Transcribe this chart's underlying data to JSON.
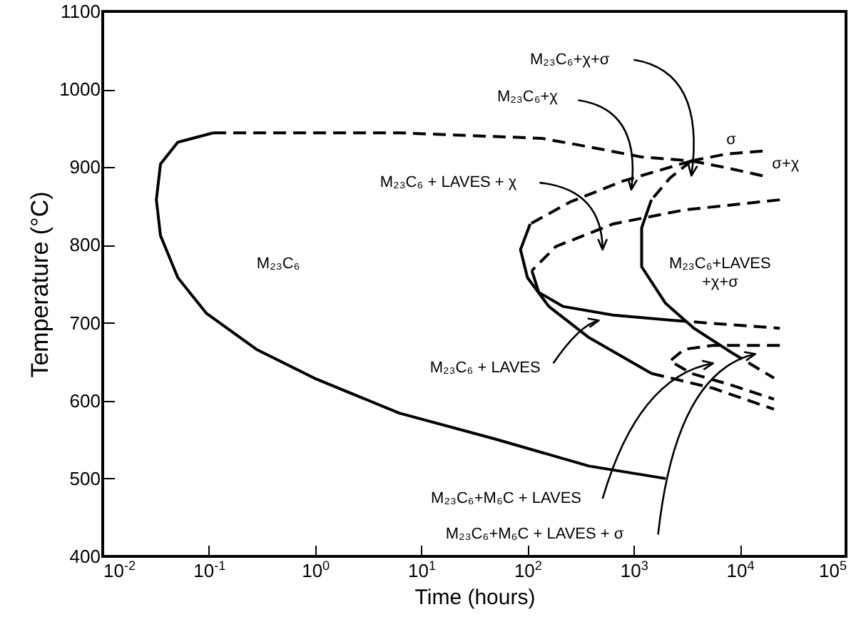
{
  "chart_data": {
    "type": "line",
    "xlabel": "Time (hours)",
    "ylabel": "Temperature (°C)",
    "log": "x",
    "xlim": [
      0.01,
      100000
    ],
    "xticks": [
      {
        "value": 0.01,
        "label": "10$^{-2}$"
      },
      {
        "value": 0.1,
        "label": "10$^{-1}$"
      },
      {
        "value": 1,
        "label": "10$^{0}$"
      },
      {
        "value": 10,
        "label": "10$^{1}$"
      },
      {
        "value": 100,
        "label": "10$^{2}$"
      },
      {
        "value": 1000,
        "label": "10$^{3}$"
      },
      {
        "value": 10000,
        "label": "10$^{4}$"
      },
      {
        "value": 100000,
        "label": "10$^{5}$"
      }
    ],
    "ylim": [
      400,
      1100
    ],
    "yticks": [
      400,
      500,
      600,
      700,
      800,
      900,
      1000,
      1100
    ],
    "grid": false,
    "legend": false,
    "marker": "none",
    "series": [
      {
        "type": "line",
        "line_style": "solid",
        "color": "#000000",
        "x": [
          0.11,
          0.051,
          0.035,
          0.032,
          0.035,
          0.051,
          0.095,
          0.28,
          0.98,
          6.2,
          49,
          380,
          2000
        ],
        "values": [
          944,
          932,
          904,
          858,
          812,
          758,
          712,
          666,
          629,
          584,
          551,
          516,
          500
        ]
      },
      {
        "type": "line",
        "line_style": "dashed",
        "color": "#000000",
        "x": [
          0.11,
          6.2,
          136,
          380,
          1190,
          3500,
          7600,
          17500
        ],
        "values": [
          944,
          944,
          937,
          926,
          913,
          908,
          917,
          921
        ]
      },
      {
        "type": "line",
        "line_style": "dashed",
        "color": "#000000",
        "x": [
          3500,
          7600,
          17500
        ],
        "values": [
          908,
          899,
          888
        ]
      },
      {
        "type": "line",
        "line_style": "dashed",
        "color": "#000000",
        "x": [
          3500,
          790,
          250,
          106
        ],
        "values": [
          908,
          882,
          855,
          827
        ]
      },
      {
        "type": "line",
        "line_style": "solid",
        "color": "#000000",
        "x": [
          106,
          86,
          100,
          159,
          380,
          1470
        ],
        "values": [
          827,
          794,
          758,
          721,
          681,
          635
        ]
      },
      {
        "type": "line",
        "line_style": "dashed",
        "color": "#000000",
        "x": [
          1470,
          5600,
          21000
        ],
        "values": [
          635,
          616,
          589
        ]
      },
      {
        "type": "line",
        "line_style": "dashed",
        "color": "#000000",
        "x": [
          23800,
          3000,
          640,
          185,
          110
        ],
        "values": [
          858,
          845,
          827,
          798,
          767
        ]
      },
      {
        "type": "line",
        "line_style": "solid",
        "color": "#000000",
        "x": [
          110,
          128,
          217,
          640,
          2400
        ],
        "values": [
          767,
          739,
          721,
          710,
          703
        ]
      },
      {
        "type": "line",
        "line_style": "dashed",
        "color": "#000000",
        "x": [
          2400,
          23800
        ],
        "values": [
          703,
          693
        ]
      },
      {
        "type": "line",
        "line_style": "dashed",
        "color": "#000000",
        "x": [
          3500,
          2200,
          1470
        ],
        "values": [
          908,
          886,
          858
        ]
      },
      {
        "type": "line",
        "line_style": "solid",
        "color": "#000000",
        "x": [
          1470,
          1190,
          1190,
          2000,
          3700,
          8300
        ],
        "values": [
          858,
          822,
          772,
          725,
          693,
          662
        ]
      },
      {
        "type": "line",
        "line_style": "dashed",
        "color": "#000000",
        "x": [
          8300,
          21000
        ],
        "values": [
          662,
          629
        ]
      },
      {
        "type": "line",
        "line_style": "dashed",
        "color": "#000000",
        "x": [
          23800,
          5600,
          3000,
          2200,
          3500,
          8300,
          21000
        ],
        "values": [
          671,
          671,
          666,
          651,
          635,
          620,
          602
        ]
      }
    ],
    "annotations": [
      "M₂₃C₆",
      "M₂₃C₆+χ+σ",
      "M₂₃C₆+χ",
      "M₂₃C₆ + LAVES + χ",
      "M₂₃C₆+LAVES\n+χ+σ",
      "M₂₃C₆ + LAVES",
      "M₂₃C₆+M₆C + LAVES",
      "M₂₃C₆+M₆C + LAVES + σ",
      "σ",
      "σ+χ"
    ]
  }
}
